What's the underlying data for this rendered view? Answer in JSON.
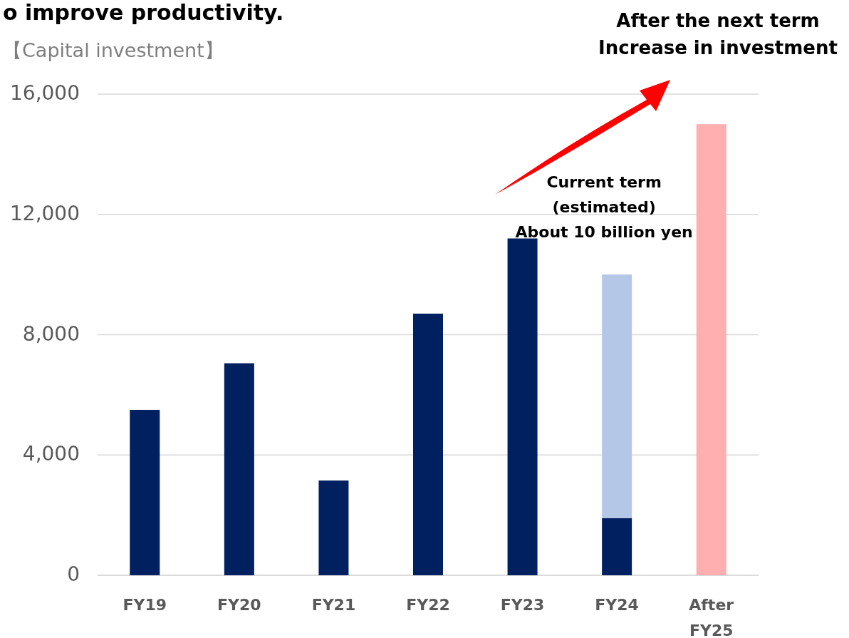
{
  "chart_data": {
    "type": "bar",
    "title": "o improve productivity.",
    "ylabel": "【Capital investment】",
    "categories": [
      "FY19",
      "FY20",
      "FY21",
      "FY22",
      "FY23",
      "FY24",
      "After\nFY25"
    ],
    "stacked": true,
    "series": [
      {
        "color": "#002060",
        "values": [
          5500,
          7050,
          3150,
          8700,
          11200,
          1900,
          null
        ]
      },
      {
        "color": "#b4c7e7",
        "values": [
          null,
          null,
          null,
          null,
          null,
          8100,
          null
        ]
      },
      {
        "color": "#ffafaf",
        "values": [
          null,
          null,
          null,
          null,
          null,
          null,
          15000
        ]
      }
    ],
    "ylim": [
      0,
      16000
    ],
    "yticks": [
      {
        "value": 0,
        "label": "0"
      },
      {
        "value": 4000,
        "label": "4,000"
      },
      {
        "value": 8000,
        "label": "8,000"
      },
      {
        "value": 12000,
        "label": "12,000"
      },
      {
        "value": 16000,
        "label": "16,000"
      }
    ],
    "grid": "y",
    "annotations": [
      {
        "text": "Current term\n(estimated)\nAbout 10 billion yen",
        "x": "FY24",
        "y": 10000
      },
      "After the next term\nIncrease in investment"
    ]
  }
}
